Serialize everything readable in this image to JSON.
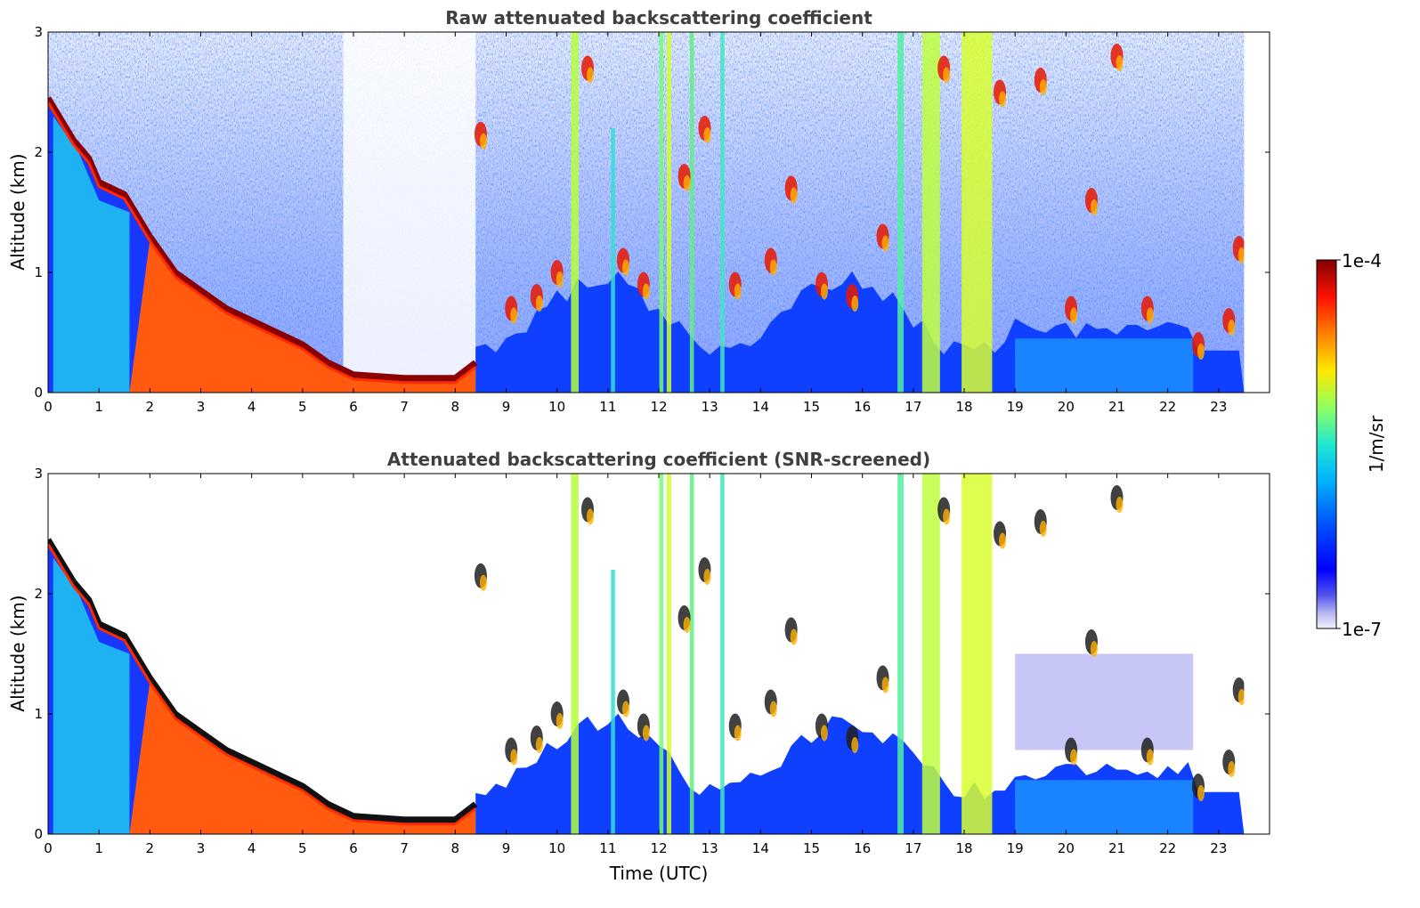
{
  "chart_data": [
    {
      "type": "heatmap",
      "title": "Raw attenuated backscattering coefficient",
      "xlabel": "",
      "ylabel": "Altitude (km)",
      "xlim": [
        0,
        24
      ],
      "ylim": [
        0,
        3
      ],
      "x_ticks": [
        "0",
        "1",
        "2",
        "3",
        "4",
        "5",
        "6",
        "7",
        "8",
        "9",
        "10",
        "11",
        "12",
        "13",
        "14",
        "15",
        "16",
        "17",
        "18",
        "19",
        "20",
        "21",
        "22",
        "23"
      ],
      "y_ticks": [
        "0",
        "1",
        "2",
        "3"
      ],
      "grid": false,
      "features": {
        "boundary_layer_top_km": [
          [
            0,
            2.45
          ],
          [
            0.5,
            2.1
          ],
          [
            0.8,
            1.95
          ],
          [
            1.0,
            1.75
          ],
          [
            1.5,
            1.65
          ],
          [
            2.0,
            1.3
          ],
          [
            2.5,
            1.0
          ],
          [
            3.0,
            0.85
          ],
          [
            3.5,
            0.7
          ],
          [
            4.0,
            0.6
          ],
          [
            4.5,
            0.5
          ],
          [
            5.0,
            0.4
          ],
          [
            5.5,
            0.25
          ],
          [
            6.0,
            0.15
          ],
          [
            7.0,
            0.12
          ],
          [
            8.0,
            0.12
          ],
          [
            8.4,
            0.25
          ]
        ],
        "data_end_time": 23.5
      }
    },
    {
      "type": "heatmap",
      "title": "Attenuated backscattering coefficient (SNR-screened)",
      "xlabel": "Time (UTC)",
      "ylabel": "Altitude (km)",
      "xlim": [
        0,
        24
      ],
      "ylim": [
        0,
        3
      ],
      "x_ticks": [
        "0",
        "1",
        "2",
        "3",
        "4",
        "5",
        "6",
        "7",
        "8",
        "9",
        "10",
        "11",
        "12",
        "13",
        "14",
        "15",
        "16",
        "17",
        "18",
        "19",
        "20",
        "21",
        "22",
        "23"
      ],
      "y_ticks": [
        "0",
        "1",
        "2",
        "3"
      ],
      "grid": false,
      "features": {
        "boundary_layer_top_km": [
          [
            0,
            2.45
          ],
          [
            0.5,
            2.1
          ],
          [
            0.8,
            1.95
          ],
          [
            1.0,
            1.75
          ],
          [
            1.5,
            1.65
          ],
          [
            2.0,
            1.3
          ],
          [
            2.5,
            1.0
          ],
          [
            3.0,
            0.85
          ],
          [
            3.5,
            0.7
          ],
          [
            4.0,
            0.6
          ],
          [
            4.5,
            0.5
          ],
          [
            5.0,
            0.4
          ],
          [
            5.5,
            0.25
          ],
          [
            6.0,
            0.15
          ],
          [
            7.0,
            0.12
          ],
          [
            8.0,
            0.12
          ],
          [
            8.4,
            0.25
          ]
        ],
        "data_end_time": 23.5
      }
    }
  ],
  "colorbar": {
    "label": "1/m/sr",
    "max_label": "1e-4",
    "min_label": "1e-7",
    "colormap": "jet"
  }
}
